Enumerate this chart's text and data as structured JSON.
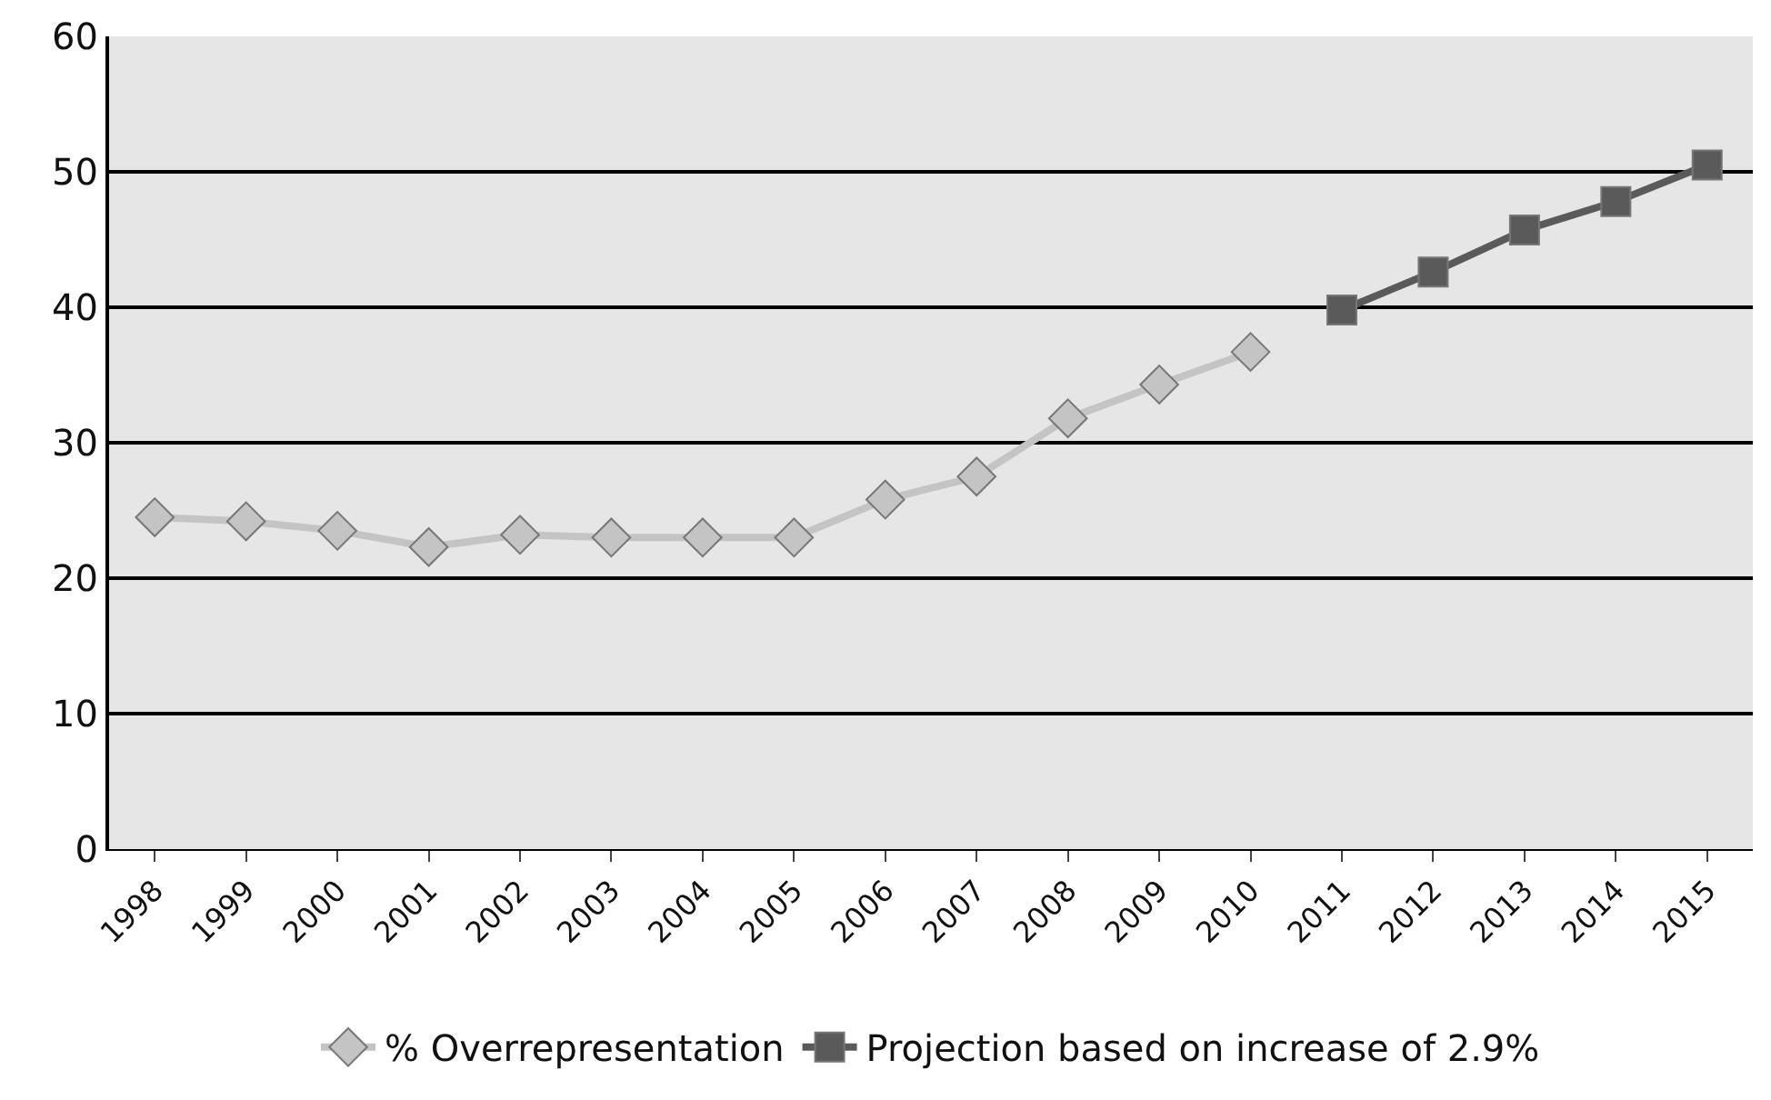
{
  "chart_data": {
    "type": "line",
    "categories": [
      "1998",
      "1999",
      "2000",
      "2001",
      "2002",
      "2003",
      "2004",
      "2005",
      "2006",
      "2007",
      "2008",
      "2009",
      "2010",
      "2011",
      "2012",
      "2013",
      "2014",
      "2015"
    ],
    "series": [
      {
        "name": "% Overrepresentation",
        "color": "#c4c4c4",
        "marker": "diamond",
        "values": [
          24.5,
          24.2,
          23.5,
          22.3,
          23.2,
          23,
          23,
          23,
          25.8,
          27.5,
          31.8,
          34.3,
          36.7,
          null,
          null,
          null,
          null,
          null
        ]
      },
      {
        "name": "Projection based on increase of 2.9%",
        "color": "#5a5a5a",
        "marker": "square",
        "values": [
          null,
          null,
          null,
          null,
          null,
          null,
          null,
          null,
          null,
          null,
          null,
          null,
          null,
          39.8,
          42.6,
          45.7,
          47.8,
          50.5
        ]
      }
    ],
    "ylim": [
      0,
      60
    ],
    "yticks": [
      0,
      10,
      20,
      30,
      40,
      50,
      60
    ],
    "grid": "y",
    "legend": "bottom",
    "line_style": "solid"
  }
}
